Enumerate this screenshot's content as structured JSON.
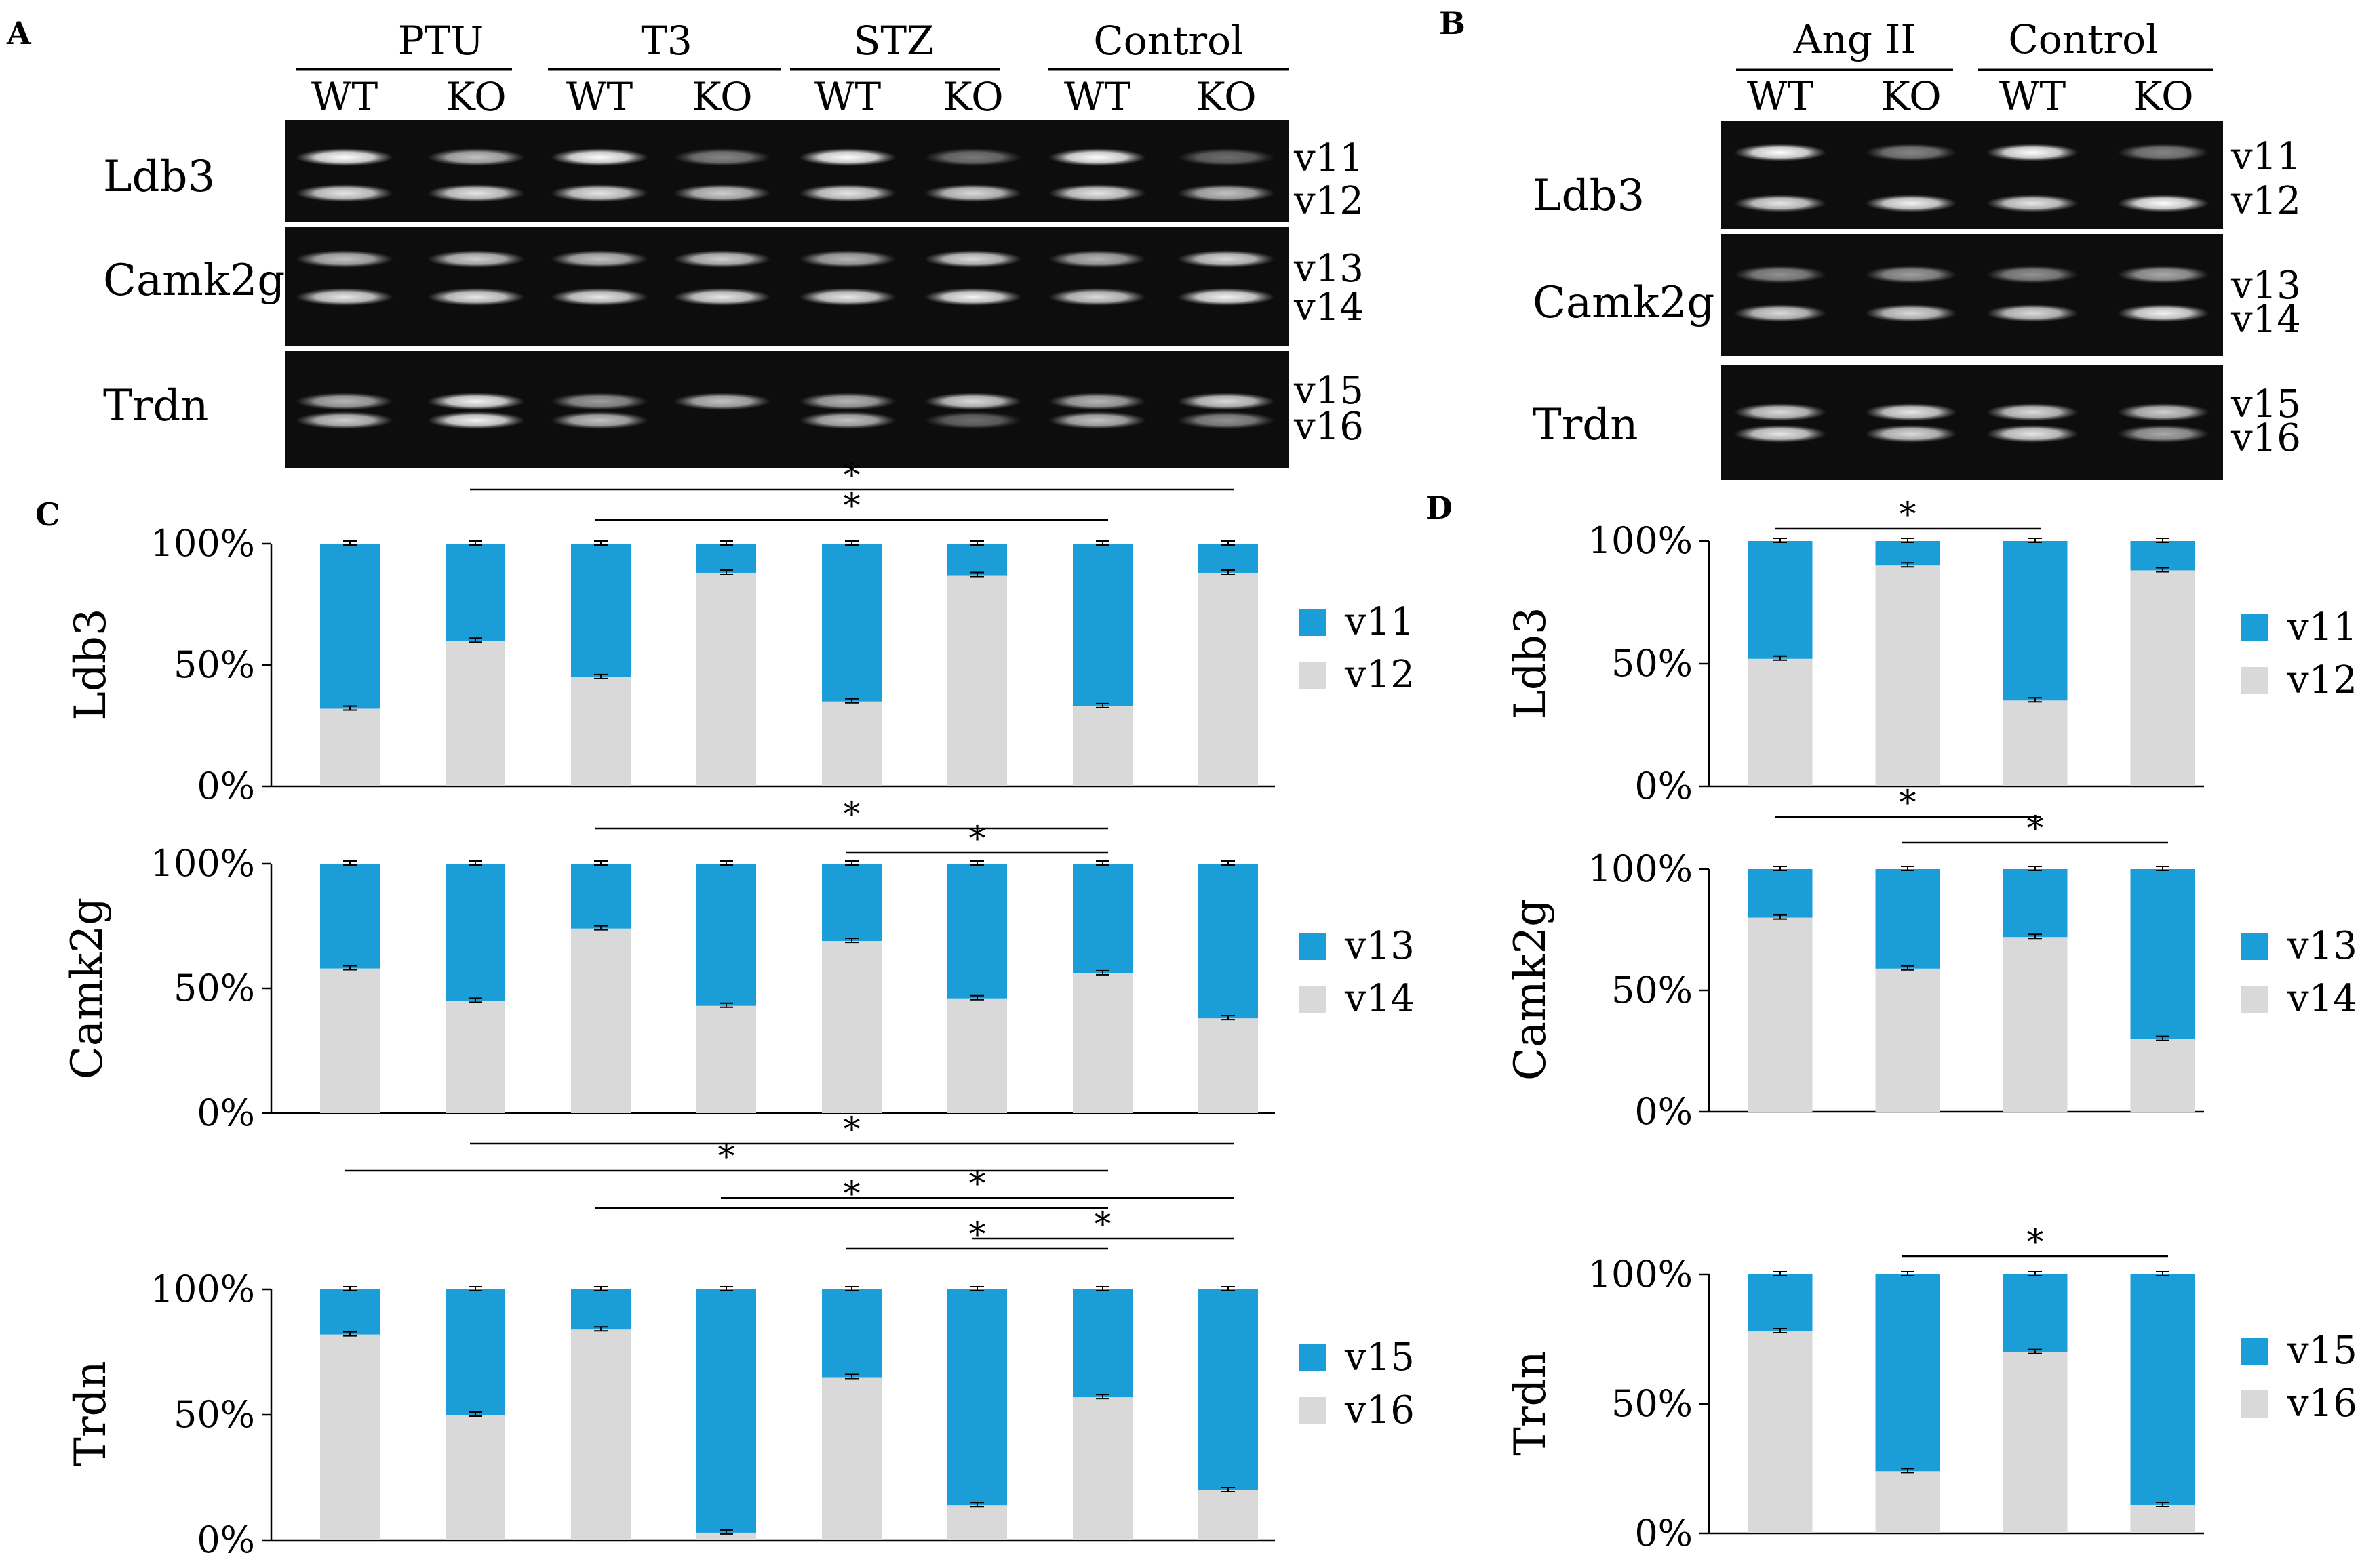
{
  "panels": {
    "A": {
      "letter": "A",
      "groups": [
        "PTU",
        "T3",
        "STZ",
        "Control"
      ],
      "lanes": [
        "WT",
        "KO",
        "WT",
        "KO",
        "WT",
        "KO",
        "WT",
        "KO"
      ],
      "genes": [
        {
          "name": "Ldb3",
          "bands": [
            "v11",
            "v12"
          ]
        },
        {
          "name": "Camk2g",
          "bands": [
            "v13",
            "v14"
          ]
        },
        {
          "name": "Trdn",
          "bands": [
            "v15",
            "v16"
          ]
        }
      ]
    },
    "B": {
      "letter": "B",
      "groups": [
        "Ang II",
        "Control"
      ],
      "lanes": [
        "WT",
        "KO",
        "WT",
        "KO"
      ],
      "genes": [
        {
          "name": "Ldb3",
          "bands": [
            "v11",
            "v12"
          ]
        },
        {
          "name": "Camk2g",
          "bands": [
            "v13",
            "v14"
          ]
        },
        {
          "name": "Trdn",
          "bands": [
            "v15",
            "v16"
          ]
        }
      ]
    },
    "C": {
      "letter": "C"
    },
    "D": {
      "letter": "D"
    }
  },
  "colors": {
    "top_segment": "#1b9dd8",
    "bottom_segment": "#d9d9d9"
  },
  "chart_data": [
    {
      "panel": "C",
      "type": "bar",
      "stacked": true,
      "ylabel": "Ldb3",
      "yticks": [
        "0%",
        "50%",
        "100%"
      ],
      "ylim": [
        0,
        100
      ],
      "categories": [
        "",
        "",
        "",
        "",
        "",
        "",
        "",
        ""
      ],
      "series": [
        {
          "name": "v12",
          "values": [
            32,
            60,
            45,
            88,
            35,
            87,
            33,
            88
          ]
        },
        {
          "name": "v11",
          "values": [
            68,
            40,
            55,
            12,
            65,
            13,
            67,
            12
          ]
        }
      ],
      "significance": [
        {
          "from": 1,
          "to": 7,
          "label": "*"
        },
        {
          "from": 2,
          "to": 6,
          "label": "*"
        }
      ]
    },
    {
      "panel": "C",
      "type": "bar",
      "stacked": true,
      "ylabel": "Camk2g",
      "yticks": [
        "0%",
        "50%",
        "100%"
      ],
      "ylim": [
        0,
        100
      ],
      "categories": [
        "",
        "",
        "",
        "",
        "",
        "",
        "",
        ""
      ],
      "series": [
        {
          "name": "v14",
          "values": [
            58,
            45,
            74,
            43,
            69,
            46,
            56,
            38
          ]
        },
        {
          "name": "v13",
          "values": [
            42,
            55,
            26,
            57,
            31,
            54,
            44,
            62
          ]
        }
      ],
      "significance": [
        {
          "from": 2,
          "to": 6,
          "label": "*"
        },
        {
          "from": 4,
          "to": 6,
          "label": "*"
        }
      ]
    },
    {
      "panel": "C",
      "type": "bar",
      "stacked": true,
      "ylabel": "Trdn",
      "yticks": [
        "0%",
        "50%",
        "100%"
      ],
      "ylim": [
        0,
        100
      ],
      "categories": [
        "",
        "",
        "",
        "",
        "",
        "",
        "",
        ""
      ],
      "series": [
        {
          "name": "v16",
          "values": [
            82,
            50,
            84,
            3,
            65,
            14,
            57,
            20
          ]
        },
        {
          "name": "v15",
          "values": [
            18,
            50,
            16,
            97,
            35,
            86,
            43,
            80
          ]
        }
      ],
      "significance": [
        {
          "from": 1,
          "to": 7,
          "label": "*"
        },
        {
          "from": 0,
          "to": 6,
          "label": "*"
        },
        {
          "from": 3,
          "to": 7,
          "label": "*"
        },
        {
          "from": 2,
          "to": 6,
          "label": "*"
        },
        {
          "from": 5,
          "to": 7,
          "label": "*"
        },
        {
          "from": 4,
          "to": 6,
          "label": "*"
        }
      ]
    },
    {
      "panel": "D",
      "type": "bar",
      "stacked": true,
      "ylabel": "Ldb3",
      "yticks": [
        "0%",
        "50%",
        "100%"
      ],
      "ylim": [
        0,
        100
      ],
      "categories": [
        "",
        "",
        "",
        ""
      ],
      "series": [
        {
          "name": "v12",
          "values": [
            52,
            90,
            35,
            88
          ]
        },
        {
          "name": "v11",
          "values": [
            48,
            10,
            65,
            12
          ]
        }
      ],
      "significance": [
        {
          "from": 0,
          "to": 2,
          "label": "*"
        }
      ]
    },
    {
      "panel": "D",
      "type": "bar",
      "stacked": true,
      "ylabel": "Camk2g",
      "yticks": [
        "0%",
        "50%",
        "100%"
      ],
      "ylim": [
        0,
        100
      ],
      "categories": [
        "",
        "",
        "",
        ""
      ],
      "series": [
        {
          "name": "v14",
          "values": [
            80,
            59,
            72,
            30
          ]
        },
        {
          "name": "v13",
          "values": [
            20,
            41,
            28,
            70
          ]
        }
      ],
      "significance": [
        {
          "from": 1,
          "to": 3,
          "label": "*"
        },
        {
          "from": 0,
          "to": 2,
          "label": "*"
        }
      ]
    },
    {
      "panel": "D",
      "type": "bar",
      "stacked": true,
      "ylabel": "Trdn",
      "yticks": [
        "0%",
        "50%",
        "100%"
      ],
      "ylim": [
        0,
        100
      ],
      "categories": [
        "",
        "",
        "",
        ""
      ],
      "series": [
        {
          "name": "v16",
          "values": [
            78,
            24,
            70,
            11
          ]
        },
        {
          "name": "v15",
          "values": [
            22,
            76,
            30,
            89
          ]
        }
      ],
      "significance": [
        {
          "from": 1,
          "to": 3,
          "label": "*"
        }
      ]
    }
  ]
}
